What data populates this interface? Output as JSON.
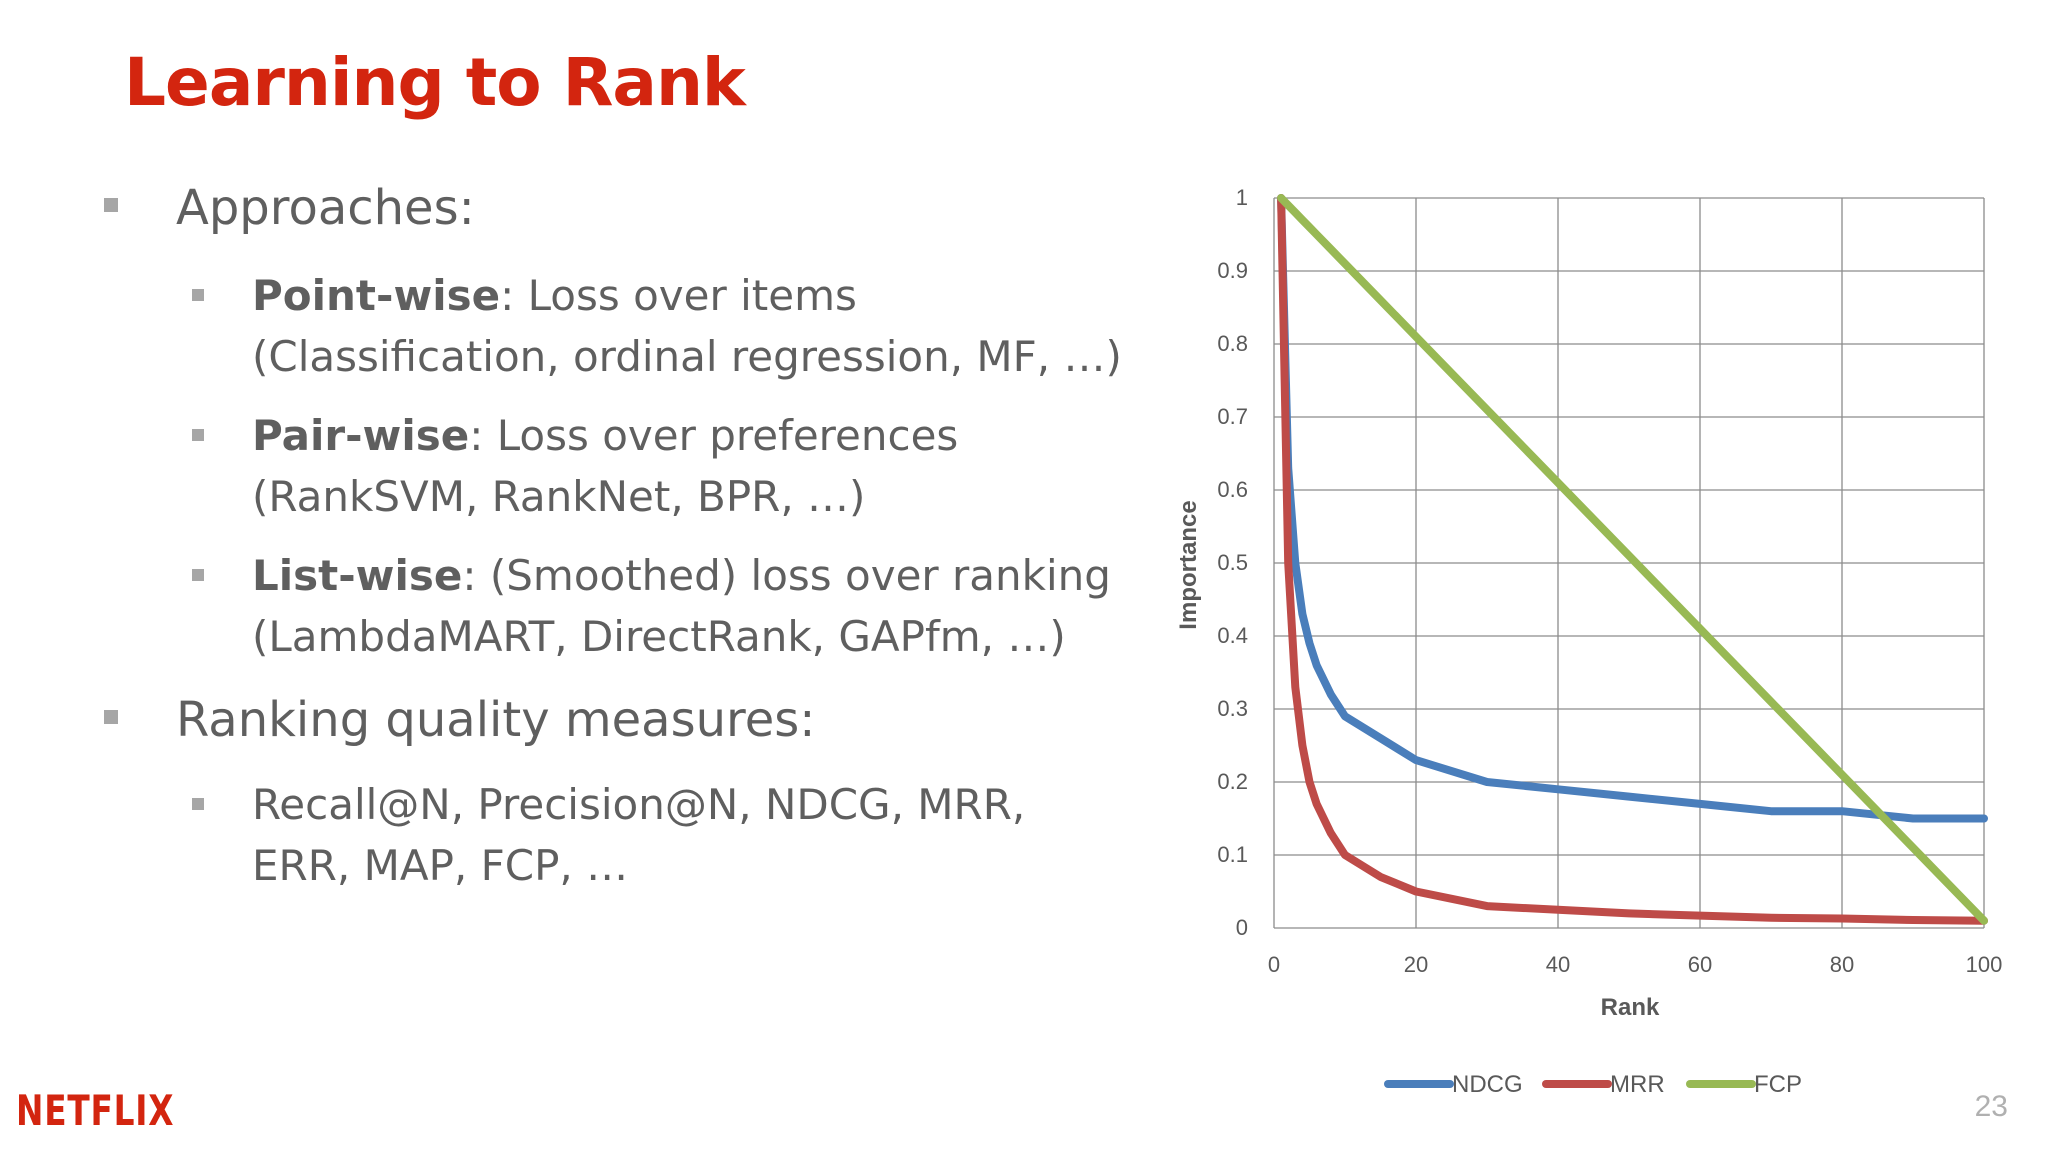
{
  "slide": {
    "title": "Learning to Rank",
    "page_number": "23",
    "logo_text": "NETFLIX"
  },
  "bullets": {
    "approaches": "Approaches:",
    "pointwise_term": "Point-wise",
    "pointwise_desc": ": Loss over items",
    "pointwise_examples": "(Classification, ordinal regression, MF, …)",
    "pairwise_term": "Pair-wise",
    "pairwise_desc": ": Loss over preferences",
    "pairwise_examples": "(RankSVM, RankNet, BPR, …)",
    "listwise_term": "List-wise",
    "listwise_desc": ": (Smoothed) loss over ranking",
    "listwise_examples": "(LambdaMART, DirectRank, GAPfm, …)",
    "measures": "Ranking quality measures:",
    "measures_line1": "Recall@N, Precision@N, NDCG, MRR,",
    "measures_line2": "ERR, MAP, FCP, …"
  },
  "colors": {
    "title": "#d3250f",
    "text": "#5f5f5f",
    "ndcg": "#4a7ebb",
    "mrr": "#be4b48",
    "fcp": "#98b954"
  },
  "chart_data": {
    "type": "line",
    "xlabel": "Rank",
    "ylabel": "Importance",
    "xlim": [
      0,
      100
    ],
    "ylim": [
      0,
      1
    ],
    "x_ticks": [
      0,
      20,
      40,
      60,
      80,
      100
    ],
    "y_ticks": [
      0,
      0.1,
      0.2,
      0.3,
      0.4,
      0.5,
      0.6,
      0.7,
      0.8,
      0.9,
      1
    ],
    "grid": true,
    "legend_position": "bottom",
    "x": [
      1,
      2,
      3,
      4,
      5,
      6,
      8,
      10,
      15,
      20,
      30,
      40,
      50,
      60,
      70,
      80,
      90,
      100
    ],
    "series": [
      {
        "name": "NDCG",
        "color": "#4a7ebb",
        "values": [
          1,
          0.63,
          0.5,
          0.43,
          0.39,
          0.36,
          0.32,
          0.29,
          0.26,
          0.23,
          0.2,
          0.19,
          0.18,
          0.17,
          0.16,
          0.16,
          0.15,
          0.15
        ]
      },
      {
        "name": "MRR",
        "color": "#be4b48",
        "values": [
          1,
          0.5,
          0.33,
          0.25,
          0.2,
          0.17,
          0.13,
          0.1,
          0.07,
          0.05,
          0.03,
          0.025,
          0.02,
          0.017,
          0.014,
          0.013,
          0.011,
          0.01
        ]
      },
      {
        "name": "FCP",
        "color": "#98b954",
        "values": [
          1,
          0.99,
          0.98,
          0.97,
          0.96,
          0.95,
          0.93,
          0.91,
          0.86,
          0.81,
          0.71,
          0.61,
          0.51,
          0.41,
          0.31,
          0.21,
          0.11,
          0.01
        ]
      }
    ]
  }
}
